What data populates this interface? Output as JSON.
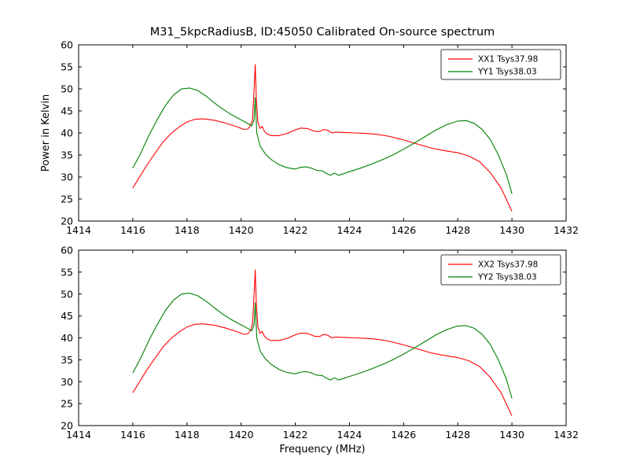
{
  "title": "M31_5kpcRadiusB, ID:45050 Calibrated On-source spectrum",
  "colors": {
    "xx": "#ff0000",
    "yy": "#007f00",
    "axes": "#000000",
    "background": "#ffffff"
  },
  "chart_data": [
    {
      "type": "line",
      "name": "top-spectrum",
      "title": "",
      "xlabel": "",
      "ylabel": "Power in Kelvin",
      "xlim": [
        1414,
        1432
      ],
      "ylim": [
        20,
        60
      ],
      "xticks": [
        1414,
        1416,
        1418,
        1420,
        1422,
        1424,
        1426,
        1428,
        1430,
        1432
      ],
      "yticks": [
        20,
        25,
        30,
        35,
        40,
        45,
        50,
        55,
        60
      ],
      "grid": false,
      "legend_position": "upper right",
      "series": [
        {
          "name": "XX1",
          "label": "XX1 Tsys37.98",
          "color": "#ff0000",
          "points": [
            [
              1416.0,
              27.5
            ],
            [
              1416.2,
              29.5
            ],
            [
              1416.5,
              32.5
            ],
            [
              1416.8,
              35.2
            ],
            [
              1417.1,
              37.8
            ],
            [
              1417.4,
              39.8
            ],
            [
              1417.7,
              41.3
            ],
            [
              1418.0,
              42.5
            ],
            [
              1418.3,
              43.1
            ],
            [
              1418.6,
              43.2
            ],
            [
              1419.0,
              42.9
            ],
            [
              1419.4,
              42.3
            ],
            [
              1419.8,
              41.5
            ],
            [
              1420.1,
              40.8
            ],
            [
              1420.25,
              40.9
            ],
            [
              1420.35,
              41.8
            ],
            [
              1420.42,
              43.0
            ],
            [
              1420.48,
              50.0
            ],
            [
              1420.52,
              55.5
            ],
            [
              1420.56,
              48.0
            ],
            [
              1420.62,
              42.5
            ],
            [
              1420.7,
              41.0
            ],
            [
              1420.78,
              41.5
            ],
            [
              1420.85,
              40.5
            ],
            [
              1420.95,
              39.8
            ],
            [
              1421.1,
              39.4
            ],
            [
              1421.4,
              39.4
            ],
            [
              1421.7,
              39.9
            ],
            [
              1422.0,
              40.7
            ],
            [
              1422.2,
              41.1
            ],
            [
              1422.45,
              41.0
            ],
            [
              1422.7,
              40.4
            ],
            [
              1422.9,
              40.3
            ],
            [
              1423.05,
              40.8
            ],
            [
              1423.2,
              40.6
            ],
            [
              1423.35,
              40.0
            ],
            [
              1423.5,
              40.2
            ],
            [
              1423.8,
              40.1
            ],
            [
              1424.2,
              40.0
            ],
            [
              1424.6,
              39.9
            ],
            [
              1425.0,
              39.7
            ],
            [
              1425.5,
              39.2
            ],
            [
              1426.0,
              38.4
            ],
            [
              1426.5,
              37.5
            ],
            [
              1427.0,
              36.6
            ],
            [
              1427.5,
              36.0
            ],
            [
              1428.0,
              35.5
            ],
            [
              1428.4,
              34.8
            ],
            [
              1428.8,
              33.5
            ],
            [
              1429.2,
              31.0
            ],
            [
              1429.6,
              27.5
            ],
            [
              1430.0,
              22.2
            ]
          ]
        },
        {
          "name": "YY1",
          "label": "YY1 Tsys38.03",
          "color": "#007f00",
          "points": [
            [
              1416.0,
              32.0
            ],
            [
              1416.3,
              35.5
            ],
            [
              1416.6,
              39.5
            ],
            [
              1416.9,
              43.0
            ],
            [
              1417.2,
              46.2
            ],
            [
              1417.5,
              48.6
            ],
            [
              1417.8,
              50.0
            ],
            [
              1418.1,
              50.2
            ],
            [
              1418.4,
              49.6
            ],
            [
              1418.7,
              48.4
            ],
            [
              1419.0,
              46.9
            ],
            [
              1419.3,
              45.5
            ],
            [
              1419.6,
              44.3
            ],
            [
              1419.9,
              43.3
            ],
            [
              1420.2,
              42.3
            ],
            [
              1420.4,
              41.6
            ],
            [
              1420.48,
              43.0
            ],
            [
              1420.52,
              48.0
            ],
            [
              1420.58,
              40.0
            ],
            [
              1420.7,
              37.0
            ],
            [
              1420.9,
              35.2
            ],
            [
              1421.1,
              34.0
            ],
            [
              1421.4,
              32.8
            ],
            [
              1421.7,
              32.1
            ],
            [
              1422.0,
              31.8
            ],
            [
              1422.2,
              32.2
            ],
            [
              1422.4,
              32.3
            ],
            [
              1422.6,
              32.0
            ],
            [
              1422.8,
              31.5
            ],
            [
              1423.0,
              31.4
            ],
            [
              1423.15,
              30.8
            ],
            [
              1423.3,
              30.4
            ],
            [
              1423.45,
              30.9
            ],
            [
              1423.6,
              30.4
            ],
            [
              1423.8,
              30.8
            ],
            [
              1424.0,
              31.2
            ],
            [
              1424.4,
              32.0
            ],
            [
              1424.8,
              32.9
            ],
            [
              1425.2,
              33.9
            ],
            [
              1425.6,
              35.0
            ],
            [
              1426.0,
              36.3
            ],
            [
              1426.4,
              37.7
            ],
            [
              1426.8,
              39.2
            ],
            [
              1427.2,
              40.7
            ],
            [
              1427.6,
              41.9
            ],
            [
              1428.0,
              42.7
            ],
            [
              1428.3,
              42.8
            ],
            [
              1428.6,
              42.2
            ],
            [
              1428.9,
              40.8
            ],
            [
              1429.2,
              38.5
            ],
            [
              1429.5,
              35.0
            ],
            [
              1429.8,
              30.5
            ],
            [
              1430.0,
              26.2
            ]
          ]
        }
      ]
    },
    {
      "type": "line",
      "name": "bottom-spectrum",
      "title": "",
      "xlabel": "Frequency (MHz)",
      "ylabel": "",
      "xlim": [
        1414,
        1432
      ],
      "ylim": [
        20,
        60
      ],
      "xticks": [
        1414,
        1416,
        1418,
        1420,
        1422,
        1424,
        1426,
        1428,
        1430,
        1432
      ],
      "yticks": [
        20,
        25,
        30,
        35,
        40,
        45,
        50,
        55,
        60
      ],
      "grid": false,
      "legend_position": "upper right",
      "series": [
        {
          "name": "XX2",
          "label": "XX2 Tsys37.98",
          "color": "#ff0000",
          "points": [
            [
              1416.0,
              27.5
            ],
            [
              1416.2,
              29.5
            ],
            [
              1416.5,
              32.5
            ],
            [
              1416.8,
              35.2
            ],
            [
              1417.1,
              37.8
            ],
            [
              1417.4,
              39.8
            ],
            [
              1417.7,
              41.3
            ],
            [
              1418.0,
              42.5
            ],
            [
              1418.3,
              43.1
            ],
            [
              1418.6,
              43.2
            ],
            [
              1419.0,
              42.9
            ],
            [
              1419.4,
              42.3
            ],
            [
              1419.8,
              41.5
            ],
            [
              1420.1,
              40.8
            ],
            [
              1420.25,
              40.9
            ],
            [
              1420.35,
              41.8
            ],
            [
              1420.42,
              43.0
            ],
            [
              1420.48,
              50.0
            ],
            [
              1420.52,
              55.5
            ],
            [
              1420.56,
              48.0
            ],
            [
              1420.62,
              42.5
            ],
            [
              1420.7,
              41.0
            ],
            [
              1420.78,
              41.5
            ],
            [
              1420.85,
              40.5
            ],
            [
              1420.95,
              39.8
            ],
            [
              1421.1,
              39.4
            ],
            [
              1421.4,
              39.4
            ],
            [
              1421.7,
              39.9
            ],
            [
              1422.0,
              40.7
            ],
            [
              1422.2,
              41.1
            ],
            [
              1422.45,
              41.0
            ],
            [
              1422.7,
              40.4
            ],
            [
              1422.9,
              40.3
            ],
            [
              1423.05,
              40.8
            ],
            [
              1423.2,
              40.6
            ],
            [
              1423.35,
              40.0
            ],
            [
              1423.5,
              40.2
            ],
            [
              1423.8,
              40.1
            ],
            [
              1424.2,
              40.0
            ],
            [
              1424.6,
              39.9
            ],
            [
              1425.0,
              39.7
            ],
            [
              1425.5,
              39.2
            ],
            [
              1426.0,
              38.4
            ],
            [
              1426.5,
              37.5
            ],
            [
              1427.0,
              36.6
            ],
            [
              1427.5,
              36.0
            ],
            [
              1428.0,
              35.5
            ],
            [
              1428.4,
              34.8
            ],
            [
              1428.8,
              33.5
            ],
            [
              1429.2,
              31.0
            ],
            [
              1429.6,
              27.5
            ],
            [
              1430.0,
              22.2
            ]
          ]
        },
        {
          "name": "YY2",
          "label": "YY2 Tsys38.03",
          "color": "#007f00",
          "points": [
            [
              1416.0,
              32.0
            ],
            [
              1416.3,
              35.5
            ],
            [
              1416.6,
              39.5
            ],
            [
              1416.9,
              43.0
            ],
            [
              1417.2,
              46.2
            ],
            [
              1417.5,
              48.6
            ],
            [
              1417.8,
              50.0
            ],
            [
              1418.1,
              50.2
            ],
            [
              1418.4,
              49.6
            ],
            [
              1418.7,
              48.4
            ],
            [
              1419.0,
              46.9
            ],
            [
              1419.3,
              45.5
            ],
            [
              1419.6,
              44.3
            ],
            [
              1419.9,
              43.3
            ],
            [
              1420.2,
              42.3
            ],
            [
              1420.4,
              41.6
            ],
            [
              1420.48,
              43.0
            ],
            [
              1420.52,
              48.0
            ],
            [
              1420.58,
              40.0
            ],
            [
              1420.7,
              37.0
            ],
            [
              1420.9,
              35.2
            ],
            [
              1421.1,
              34.0
            ],
            [
              1421.4,
              32.8
            ],
            [
              1421.7,
              32.1
            ],
            [
              1422.0,
              31.8
            ],
            [
              1422.2,
              32.2
            ],
            [
              1422.4,
              32.3
            ],
            [
              1422.6,
              32.0
            ],
            [
              1422.8,
              31.5
            ],
            [
              1423.0,
              31.4
            ],
            [
              1423.15,
              30.8
            ],
            [
              1423.3,
              30.4
            ],
            [
              1423.45,
              30.9
            ],
            [
              1423.6,
              30.4
            ],
            [
              1423.8,
              30.8
            ],
            [
              1424.0,
              31.2
            ],
            [
              1424.4,
              32.0
            ],
            [
              1424.8,
              32.9
            ],
            [
              1425.2,
              33.9
            ],
            [
              1425.6,
              35.0
            ],
            [
              1426.0,
              36.3
            ],
            [
              1426.4,
              37.7
            ],
            [
              1426.8,
              39.2
            ],
            [
              1427.2,
              40.7
            ],
            [
              1427.6,
              41.9
            ],
            [
              1428.0,
              42.7
            ],
            [
              1428.3,
              42.8
            ],
            [
              1428.6,
              42.2
            ],
            [
              1428.9,
              40.8
            ],
            [
              1429.2,
              38.5
            ],
            [
              1429.5,
              35.0
            ],
            [
              1429.8,
              30.5
            ],
            [
              1430.0,
              26.2
            ]
          ]
        }
      ]
    }
  ]
}
